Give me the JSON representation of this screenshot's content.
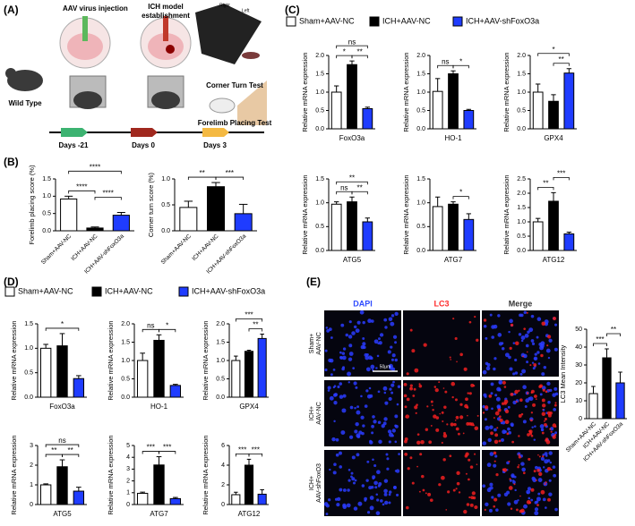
{
  "figure": {
    "panel_labels": [
      "(A)",
      "(B)",
      "(C)",
      "(D)",
      "(E)"
    ],
    "schematic": {
      "wild_type": "Wild Type",
      "injection": "AAV virus injection",
      "model": [
        "ICH model",
        "establishment"
      ],
      "right": "Right",
      "left": "Left",
      "corner": "Corner Turn Test",
      "forelimb": "Forelimb Placing Test",
      "days": [
        "Days -21",
        "Days 0",
        "Days 3"
      ]
    },
    "legend_c": [
      {
        "name": "Sham+AAV-NC",
        "color": "#ffffff"
      },
      {
        "name": "ICH+AAV-NC",
        "color": "#000000"
      },
      {
        "name": "ICH+AAV-shFoxO3a",
        "color": "#1f3cff"
      }
    ],
    "legend_d": [
      {
        "name": "Sham+AAV-NC",
        "color": "#ffffff"
      },
      {
        "name": "ICH+AAV-NC",
        "color": "#000000"
      },
      {
        "name": "ICH+AAV-shFoxO3a",
        "color": "#1f3cff"
      }
    ],
    "image_columns": [
      "DAPI",
      "LC3",
      "Merge"
    ],
    "image_rows": [
      [
        "Sham+",
        "AAV-NC"
      ],
      [
        "ICH+",
        "AAV-NC"
      ],
      [
        "ICH+",
        "AAV-shFoxO3"
      ]
    ],
    "scale_bar": "50μm"
  },
  "chart_data": [
    {
      "type": "bar",
      "ylabel": "Forelimb placing score (%)",
      "categories": [
        "Sham+AAV-NC",
        "ICH+AAV-NC",
        "ICH+AAV-shFoxO3a"
      ],
      "values": [
        0.92,
        0.08,
        0.45
      ],
      "errors": [
        0.08,
        0.03,
        0.08
      ],
      "colors": [
        "#ffffff",
        "#000000",
        "#1f3cff"
      ],
      "ylim": [
        0,
        1.5
      ],
      "yticks": [
        {
          "value": 0,
          "label": "0.0"
        },
        {
          "value": 0.5,
          "label": "0.5"
        },
        {
          "value": 1,
          "label": "1.0"
        },
        {
          "value": 1.5,
          "label": "1.5"
        }
      ],
      "annotations": [
        "****",
        "****",
        "****"
      ]
    },
    {
      "type": "bar",
      "ylabel": "Corner turn score (%)",
      "categories": [
        "Sham+AAV-NC",
        "ICH+AAV-NC",
        "ICH+AAV-shFoxO3a"
      ],
      "values": [
        0.45,
        0.85,
        0.33
      ],
      "errors": [
        0.12,
        0.08,
        0.18
      ],
      "colors": [
        "#ffffff",
        "#000000",
        "#1f3cff"
      ],
      "ylim": [
        0,
        1
      ],
      "yticks": [
        {
          "value": 0,
          "label": "0.0"
        },
        {
          "value": 0.5,
          "label": "0.5"
        },
        {
          "value": 1,
          "label": "1.0"
        }
      ],
      "annotations": [
        "**",
        "***"
      ]
    },
    {
      "type": "bar",
      "ylabel": "Relative mRNA expression",
      "xlabel": "FoxO3a",
      "values": [
        1.0,
        1.75,
        0.55
      ],
      "errors": [
        0.17,
        0.1,
        0.04
      ],
      "colors": [
        "#ffffff",
        "#000000",
        "#1f3cff"
      ],
      "ylim": [
        0,
        2
      ],
      "yticks": [
        {
          "value": 0,
          "label": "0.0"
        },
        {
          "value": 0.5,
          "label": "0.5"
        },
        {
          "value": 1,
          "label": "1.0"
        },
        {
          "value": 1.5,
          "label": "1.5"
        },
        {
          "value": 2,
          "label": "2.0"
        }
      ],
      "annotations": [
        "*",
        "**",
        "ns"
      ]
    },
    {
      "type": "bar",
      "ylabel": "Relative mRNA expression",
      "xlabel": "HO-1",
      "values": [
        1.02,
        1.5,
        0.5
      ],
      "errors": [
        0.35,
        0.08,
        0.03
      ],
      "colors": [
        "#ffffff",
        "#000000",
        "#1f3cff"
      ],
      "ylim": [
        0,
        2
      ],
      "yticks": [
        {
          "value": 0,
          "label": "0.0"
        },
        {
          "value": 0.5,
          "label": "0.5"
        },
        {
          "value": 1,
          "label": "1.0"
        },
        {
          "value": 1.5,
          "label": "1.5"
        },
        {
          "value": 2,
          "label": "2.0"
        }
      ],
      "annotations": [
        "ns",
        "*"
      ]
    },
    {
      "type": "bar",
      "ylabel": "Relative mRNA expression",
      "xlabel": "GPX4",
      "values": [
        1.0,
        0.75,
        1.52
      ],
      "errors": [
        0.22,
        0.18,
        0.12
      ],
      "colors": [
        "#ffffff",
        "#000000",
        "#1f3cff"
      ],
      "ylim": [
        0,
        2
      ],
      "yticks": [
        {
          "value": 0,
          "label": "0.0"
        },
        {
          "value": 0.5,
          "label": "0.5"
        },
        {
          "value": 1,
          "label": "1.0"
        },
        {
          "value": 1.5,
          "label": "1.5"
        },
        {
          "value": 2,
          "label": "2.0"
        }
      ],
      "annotations": [
        "*",
        "**"
      ]
    },
    {
      "type": "bar",
      "ylabel": "Relative mRNA expression",
      "xlabel": "ATG5",
      "values": [
        0.97,
        1.02,
        0.6
      ],
      "errors": [
        0.05,
        0.1,
        0.08
      ],
      "colors": [
        "#ffffff",
        "#000000",
        "#1f3cff"
      ],
      "ylim": [
        0,
        1.5
      ],
      "yticks": [
        {
          "value": 0,
          "label": "0.0"
        },
        {
          "value": 0.5,
          "label": "0.5"
        },
        {
          "value": 1,
          "label": "1.0"
        },
        {
          "value": 1.5,
          "label": "1.5"
        }
      ],
      "annotations": [
        "**",
        "ns",
        "**"
      ]
    },
    {
      "type": "bar",
      "ylabel": "Relative mRNA expression",
      "xlabel": "ATG7",
      "values": [
        0.92,
        0.97,
        0.65
      ],
      "errors": [
        0.2,
        0.05,
        0.12
      ],
      "colors": [
        "#ffffff",
        "#000000",
        "#1f3cff"
      ],
      "ylim": [
        0,
        1.5
      ],
      "yticks": [
        {
          "value": 0,
          "label": "0.0"
        },
        {
          "value": 0.5,
          "label": "0.5"
        },
        {
          "value": 1,
          "label": "1.0"
        },
        {
          "value": 1.5,
          "label": "1.5"
        }
      ],
      "annotations": [
        "*"
      ]
    },
    {
      "type": "bar",
      "ylabel": "Relative mRNA expression",
      "xlabel": "ATG12",
      "values": [
        1.0,
        1.72,
        0.58
      ],
      "errors": [
        0.12,
        0.3,
        0.06
      ],
      "colors": [
        "#ffffff",
        "#000000",
        "#1f3cff"
      ],
      "ylim": [
        0,
        2.5
      ],
      "yticks": [
        {
          "value": 0,
          "label": "0.0"
        },
        {
          "value": 0.5,
          "label": "0.5"
        },
        {
          "value": 1,
          "label": "1.0"
        },
        {
          "value": 1.5,
          "label": "1.5"
        },
        {
          "value": 2,
          "label": "2.0"
        },
        {
          "value": 2.5,
          "label": "2.5"
        }
      ],
      "annotations": [
        "**",
        "***"
      ]
    },
    {
      "type": "bar",
      "ylabel": "Relative mRNA expression",
      "xlabel": "FoxO3a",
      "values": [
        1.0,
        1.05,
        0.38
      ],
      "errors": [
        0.08,
        0.25,
        0.06
      ],
      "colors": [
        "#ffffff",
        "#000000",
        "#1f3cff"
      ],
      "ylim": [
        0,
        1.5
      ],
      "yticks": [
        {
          "value": 0,
          "label": "0.0"
        },
        {
          "value": 0.5,
          "label": "0.5"
        },
        {
          "value": 1,
          "label": "1.0"
        },
        {
          "value": 1.5,
          "label": "1.5"
        }
      ],
      "annotations": [
        "*"
      ]
    },
    {
      "type": "bar",
      "ylabel": "Relative mRNA expression",
      "xlabel": "HO-1",
      "values": [
        1.0,
        1.55,
        0.32
      ],
      "errors": [
        0.2,
        0.15,
        0.03
      ],
      "colors": [
        "#ffffff",
        "#000000",
        "#1f3cff"
      ],
      "ylim": [
        0,
        2
      ],
      "yticks": [
        {
          "value": 0,
          "label": "0.0"
        },
        {
          "value": 0.5,
          "label": "0.5"
        },
        {
          "value": 1,
          "label": "1.0"
        },
        {
          "value": 1.5,
          "label": "1.5"
        },
        {
          "value": 2,
          "label": "2.0"
        }
      ],
      "annotations": [
        "ns",
        "*"
      ]
    },
    {
      "type": "bar",
      "ylabel": "Relative mRNA expression",
      "xlabel": "GPX4",
      "values": [
        1.0,
        1.25,
        1.6
      ],
      "errors": [
        0.12,
        0.03,
        0.12
      ],
      "colors": [
        "#ffffff",
        "#000000",
        "#1f3cff"
      ],
      "ylim": [
        0,
        2
      ],
      "yticks": [
        {
          "value": 0,
          "label": "0.0"
        },
        {
          "value": 0.5,
          "label": "0.5"
        },
        {
          "value": 1,
          "label": "1.0"
        },
        {
          "value": 1.5,
          "label": "1.5"
        },
        {
          "value": 2,
          "label": "2.0"
        }
      ],
      "annotations": [
        "***",
        "**"
      ]
    },
    {
      "type": "bar",
      "ylabel": "Relative mRNA expression",
      "xlabel": "ATG5",
      "values": [
        1.0,
        1.92,
        0.68
      ],
      "errors": [
        0.05,
        0.35,
        0.2
      ],
      "colors": [
        "#ffffff",
        "#000000",
        "#1f3cff"
      ],
      "ylim": [
        0,
        3
      ],
      "yticks": [
        0,
        1,
        2,
        3
      ],
      "annotations": [
        "ns",
        "**",
        "**"
      ]
    },
    {
      "type": "bar",
      "ylabel": "Relative mRNA expression",
      "xlabel": "ATG7",
      "values": [
        0.95,
        3.35,
        0.5
      ],
      "errors": [
        0.1,
        0.7,
        0.1
      ],
      "colors": [
        "#ffffff",
        "#000000",
        "#1f3cff"
      ],
      "ylim": [
        0,
        5
      ],
      "yticks": [
        0,
        1,
        2,
        3,
        4,
        5
      ],
      "annotations": [
        "***",
        "***"
      ]
    },
    {
      "type": "bar",
      "ylabel": "Relative mRNA expression",
      "xlabel": "ATG12",
      "values": [
        1.0,
        4.0,
        1.05
      ],
      "errors": [
        0.25,
        0.6,
        0.45
      ],
      "colors": [
        "#ffffff",
        "#000000",
        "#1f3cff"
      ],
      "ylim": [
        0,
        6
      ],
      "yticks": [
        0,
        2,
        4,
        6
      ],
      "annotations": [
        "***",
        "***"
      ]
    },
    {
      "type": "bar",
      "ylabel": "LC3 Mean Intensity",
      "categories": [
        "Sham+AAV-NC",
        "ICH+AAV-NC",
        "ICH+AAV-shFoxO3a"
      ],
      "values": [
        14,
        34,
        20
      ],
      "errors": [
        4,
        5,
        6
      ],
      "colors": [
        "#ffffff",
        "#000000",
        "#1f3cff"
      ],
      "ylim": [
        0,
        50
      ],
      "yticks": [
        0,
        10,
        20,
        30,
        40,
        50
      ],
      "annotations": [
        "***",
        "**"
      ]
    }
  ]
}
